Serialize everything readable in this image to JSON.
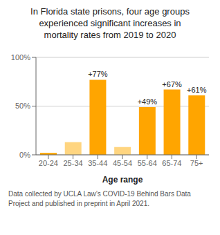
{
  "chart_data": {
    "type": "bar",
    "title": "In Florida state prisons, four age groups\nexperienced significant increases in\nmortality rates from 2019 to 2020",
    "xlabel": "Age range",
    "footnote": "Data collected by UCLA Law’s COVID-19 Behind Bars Data\nProject and published in preprint in April 2021.",
    "categories": [
      "20-24",
      "25-34",
      "35-44",
      "45-54",
      "55-64",
      "65-74",
      "75+"
    ],
    "values": [
      2,
      13,
      77,
      8,
      49,
      67,
      61
    ],
    "value_labels": [
      null,
      null,
      "+77%",
      null,
      "+49%",
      "+67%",
      "+61%"
    ],
    "colors": [
      "#FFA500",
      "#FFD580",
      "#FFA500",
      "#FFD580",
      "#FFA500",
      "#FFA500",
      "#FFA500"
    ],
    "ylim": [
      0,
      100
    ],
    "yticks": [
      {
        "value": 0,
        "label": "0%"
      },
      {
        "value": 50,
        "label": "50%"
      },
      {
        "value": 100,
        "label": "100%"
      }
    ],
    "grid": true
  }
}
